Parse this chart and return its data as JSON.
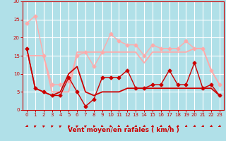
{
  "bg_color": "#b0e0e8",
  "grid_color": "#ffffff",
  "xlabel": "Vent moyen/en rafales ( km/h )",
  "xlabel_color": "#cc0000",
  "tick_color": "#cc0000",
  "xlim": [
    -0.5,
    23.5
  ],
  "ylim": [
    0,
    30
  ],
  "yticks": [
    0,
    5,
    10,
    15,
    20,
    25,
    30
  ],
  "xticks": [
    0,
    1,
    2,
    3,
    4,
    5,
    6,
    7,
    8,
    9,
    10,
    11,
    12,
    13,
    14,
    15,
    16,
    17,
    18,
    19,
    20,
    21,
    22,
    23
  ],
  "series": [
    {
      "x": [
        0,
        1,
        2,
        3,
        4,
        5,
        6,
        7,
        8,
        9,
        10,
        11,
        12,
        13,
        14,
        15,
        16,
        17,
        18,
        19,
        20,
        21,
        22,
        23
      ],
      "y": [
        17,
        6,
        5,
        4,
        4,
        9,
        5,
        1,
        3,
        9,
        9,
        9,
        11,
        6,
        6,
        7,
        7,
        11,
        7,
        7,
        13,
        6,
        7,
        4
      ],
      "color": "#cc0000",
      "lw": 1.0,
      "marker": "D",
      "ms": 2.5,
      "zorder": 5
    },
    {
      "x": [
        0,
        1,
        2,
        3,
        4,
        5,
        6,
        7,
        8,
        9,
        10,
        11,
        12,
        13,
        14,
        15,
        16,
        17,
        18,
        19,
        20,
        21,
        22,
        23
      ],
      "y": [
        17,
        6,
        5,
        4,
        5,
        10,
        12,
        5,
        4,
        5,
        5,
        5,
        6,
        6,
        6,
        6,
        6,
        6,
        6,
        6,
        6,
        6,
        6,
        4
      ],
      "color": "#cc0000",
      "lw": 1.3,
      "marker": null,
      "ms": 0,
      "zorder": 4
    },
    {
      "x": [
        0,
        1,
        2,
        3,
        4,
        5,
        6,
        7,
        8,
        9,
        10,
        11,
        12,
        13,
        14,
        15,
        16,
        17,
        18,
        19,
        20,
        21,
        22,
        23
      ],
      "y": [
        24,
        26,
        15,
        7,
        7,
        8,
        15,
        16,
        12,
        16,
        21,
        19,
        18,
        18,
        15,
        18,
        17,
        17,
        17,
        19,
        17,
        17,
        11,
        7
      ],
      "color": "#ffaaaa",
      "lw": 1.0,
      "marker": "D",
      "ms": 2.5,
      "zorder": 3
    },
    {
      "x": [
        0,
        1,
        2,
        3,
        4,
        5,
        6,
        7,
        8,
        9,
        10,
        11,
        12,
        13,
        14,
        15,
        16,
        17,
        18,
        19,
        20,
        21,
        22,
        23
      ],
      "y": [
        15,
        15,
        15,
        5,
        5,
        5,
        16,
        16,
        16,
        16,
        16,
        16,
        16,
        16,
        13,
        16,
        16,
        16,
        16,
        16,
        17,
        17,
        11,
        7
      ],
      "color": "#ffaaaa",
      "lw": 1.3,
      "marker": null,
      "ms": 0,
      "zorder": 2
    }
  ],
  "wind_dirs": [
    220,
    45,
    60,
    60,
    45,
    70,
    45,
    45,
    90,
    135,
    120,
    135,
    225,
    225,
    225,
    225,
    225,
    225,
    225,
    225,
    225,
    225,
    225,
    225
  ]
}
